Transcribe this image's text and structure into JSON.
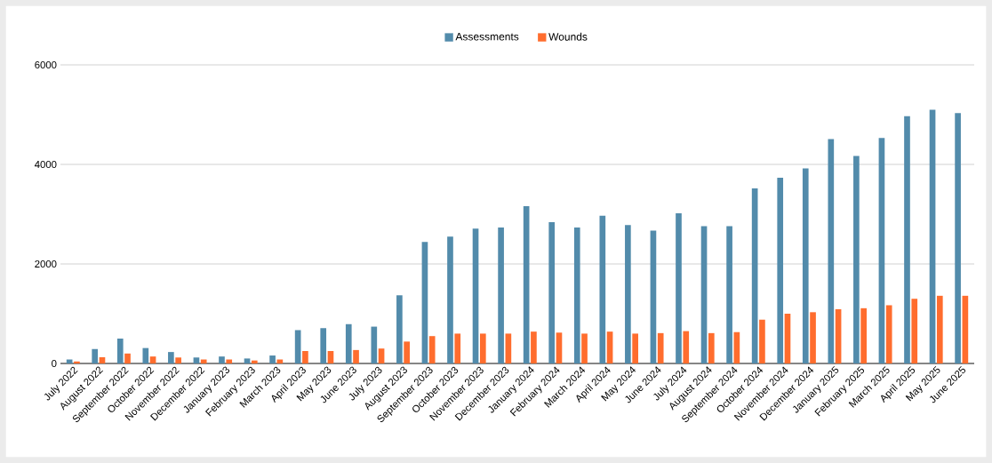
{
  "chart_data": {
    "type": "bar",
    "categories": [
      "July 2022",
      "August 2022",
      "September 2022",
      "October 2022",
      "November 2022",
      "December 2022",
      "January 2023",
      "February 2023",
      "March 2023",
      "April 2023",
      "May 2023",
      "June 2023",
      "July 2023",
      "August 2023",
      "September 2023",
      "October 2023",
      "November 2023",
      "December 2023",
      "January 2024",
      "February 2024",
      "March 2024",
      "April 2024",
      "May 2024",
      "June 2024",
      "July 2024",
      "August 2024",
      "September 2024",
      "October 2024",
      "November 2024",
      "December 2024",
      "January 2025",
      "February 2025",
      "March 2025",
      "April 2025",
      "May 2025",
      "June 2025"
    ],
    "series": [
      {
        "name": "Assessments",
        "color": "#528bab",
        "values": [
          80,
          290,
          500,
          310,
          230,
          120,
          140,
          100,
          160,
          670,
          710,
          790,
          740,
          1370,
          2440,
          2550,
          2710,
          2730,
          3160,
          2840,
          2730,
          2970,
          2780,
          2670,
          3020,
          2760,
          2760,
          3520,
          3730,
          3920,
          4510,
          4170,
          4530,
          4970,
          5100,
          5030
        ]
      },
      {
        "name": "Wounds",
        "color": "#ff6d2e",
        "values": [
          40,
          125,
          200,
          140,
          120,
          80,
          80,
          60,
          80,
          250,
          250,
          270,
          300,
          440,
          550,
          600,
          600,
          600,
          640,
          620,
          600,
          640,
          600,
          610,
          650,
          610,
          630,
          880,
          1000,
          1030,
          1090,
          1110,
          1170,
          1300,
          1360,
          1360
        ]
      }
    ],
    "ylim": [
      0,
      6000
    ],
    "yticks": [
      0,
      2000,
      4000,
      6000
    ],
    "grid": "y",
    "legend": "top"
  }
}
